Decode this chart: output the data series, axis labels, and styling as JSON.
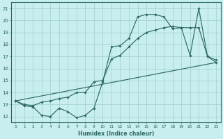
{
  "xlabel": "Humidex (Indice chaleur)",
  "bg_color": "#c8eef0",
  "grid_color": "#9ecfca",
  "line_color": "#2e6b5e",
  "xlim": [
    -0.5,
    23.5
  ],
  "ylim": [
    11.5,
    21.5
  ],
  "xticks": [
    0,
    1,
    2,
    3,
    4,
    5,
    6,
    7,
    8,
    9,
    10,
    11,
    12,
    13,
    14,
    15,
    16,
    17,
    18,
    19,
    20,
    21,
    22,
    23
  ],
  "yticks": [
    12,
    13,
    14,
    15,
    16,
    17,
    18,
    19,
    20,
    21
  ],
  "line1": [
    [
      0,
      13.3
    ],
    [
      1,
      12.9
    ],
    [
      2,
      12.8
    ],
    [
      3,
      12.1
    ],
    [
      4,
      12.0
    ],
    [
      5,
      12.7
    ],
    [
      6,
      12.4
    ],
    [
      7,
      11.9
    ],
    [
      8,
      12.1
    ],
    [
      9,
      12.7
    ],
    [
      10,
      14.9
    ],
    [
      11,
      17.8
    ],
    [
      12,
      17.9
    ],
    [
      13,
      18.5
    ],
    [
      14,
      20.3
    ],
    [
      15,
      20.5
    ],
    [
      16,
      20.5
    ],
    [
      17,
      20.3
    ],
    [
      18,
      19.3
    ],
    [
      19,
      19.4
    ],
    [
      20,
      17.1
    ],
    [
      21,
      21.0
    ],
    [
      22,
      17.0
    ],
    [
      23,
      16.7
    ]
  ],
  "line2": [
    [
      0,
      13.3
    ],
    [
      1,
      13.0
    ],
    [
      2,
      12.9
    ],
    [
      3,
      13.2
    ],
    [
      4,
      13.3
    ],
    [
      5,
      13.5
    ],
    [
      6,
      13.6
    ],
    [
      7,
      14.0
    ],
    [
      8,
      14.0
    ],
    [
      9,
      14.9
    ],
    [
      10,
      15.0
    ],
    [
      11,
      16.8
    ],
    [
      12,
      17.1
    ],
    [
      13,
      17.8
    ],
    [
      14,
      18.5
    ],
    [
      15,
      19.0
    ],
    [
      16,
      19.2
    ],
    [
      17,
      19.4
    ],
    [
      18,
      19.5
    ],
    [
      19,
      19.4
    ],
    [
      20,
      19.4
    ],
    [
      21,
      19.4
    ],
    [
      22,
      17.0
    ],
    [
      23,
      16.5
    ]
  ],
  "line3": [
    [
      0,
      13.3
    ],
    [
      23,
      16.5
    ]
  ]
}
